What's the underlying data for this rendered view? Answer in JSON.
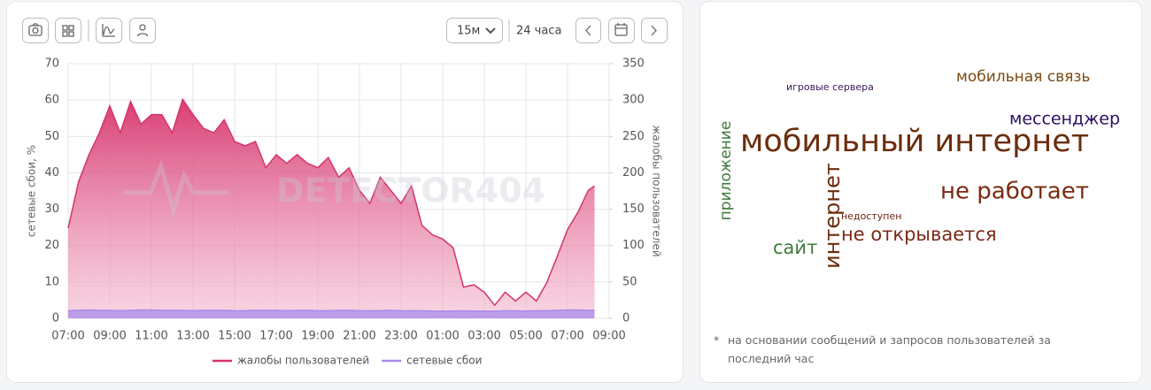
{
  "toolbar": {
    "interval": "15м",
    "period": "24 часа"
  },
  "chart_data": {
    "type": "area",
    "watermark": "DETECTOR404",
    "ylabel": "сетевые сбои, %",
    "y2label": "жалобы пользователей",
    "x": [
      0,
      0.5,
      1,
      1.5,
      2,
      2.5,
      3,
      3.5,
      4,
      4.5,
      5,
      5.5,
      6,
      6.5,
      7,
      7.5,
      8,
      8.5,
      9,
      9.5,
      10,
      10.5,
      11,
      11.5,
      12,
      12.5,
      13,
      13.5,
      14,
      14.5,
      15,
      15.5,
      16,
      16.5,
      17,
      17.5,
      18,
      18.5,
      19,
      19.5,
      20,
      20.5,
      21,
      21.5,
      22,
      22.5,
      23,
      23.5,
      24,
      24.5,
      25,
      25.3
    ],
    "xlim": [
      0,
      26
    ],
    "xticks": [
      {
        "value": 0,
        "label": "07:00"
      },
      {
        "value": 2,
        "label": "09:00"
      },
      {
        "value": 4,
        "label": "11:00"
      },
      {
        "value": 6,
        "label": "13:00"
      },
      {
        "value": 8,
        "label": "15:00"
      },
      {
        "value": 10,
        "label": "17:00"
      },
      {
        "value": 12,
        "label": "19:00"
      },
      {
        "value": 14,
        "label": "21:00"
      },
      {
        "value": 16,
        "label": "23:00"
      },
      {
        "value": 18,
        "label": "01:00"
      },
      {
        "value": 20,
        "label": "03:00"
      },
      {
        "value": 22,
        "label": "05:00"
      },
      {
        "value": 24,
        "label": "07:00"
      },
      {
        "value": 26,
        "label": "09:00"
      }
    ],
    "ylim": [
      0,
      70
    ],
    "yticks": [
      0,
      10,
      20,
      30,
      40,
      50,
      60,
      70
    ],
    "y2lim": [
      0,
      350
    ],
    "y2ticks": [
      0,
      50,
      100,
      150,
      200,
      250,
      300,
      350
    ],
    "grid": true,
    "legend": "bottom",
    "series": [
      {
        "name": "жалобы пользователей",
        "color": "#d6336c",
        "axis": "y2",
        "values": [
          124,
          188,
          225,
          255,
          292,
          255,
          298,
          267,
          280,
          280,
          255,
          301,
          280,
          261,
          255,
          273,
          243,
          237,
          243,
          207,
          225,
          213,
          225,
          213,
          207,
          221,
          194,
          207,
          176,
          158,
          194,
          176,
          158,
          182,
          128,
          115,
          109,
          97,
          43,
          46,
          36,
          18,
          36,
          24,
          36,
          24,
          49,
          85,
          122,
          146,
          176,
          182
        ]
      },
      {
        "name": "сетевые сбои",
        "color": "#a98be8",
        "values": [
          2.1,
          2.2,
          2.3,
          2.2,
          2.2,
          2.1,
          2.2,
          2.3,
          2.3,
          2.2,
          2.2,
          2.2,
          2.1,
          2.2,
          2.2,
          2.2,
          2.1,
          2.1,
          2.2,
          2.2,
          2.2,
          2.1,
          2.2,
          2.2,
          2.1,
          2.1,
          2.2,
          2.2,
          2.1,
          2.1,
          2.1,
          2.2,
          2.1,
          2.1,
          2.1,
          2.0,
          2.0,
          2.0,
          2.1,
          2.0,
          2.0,
          2.0,
          2.1,
          2.1,
          2.0,
          2.1,
          2.1,
          2.2,
          2.3,
          2.3,
          2.2,
          2.2
        ]
      }
    ]
  },
  "word_cloud": {
    "words": [
      "игровые сервера",
      "мобильная связь",
      "мессенджер",
      "мобильный интернет",
      "приложение",
      "интернет",
      "не работает",
      "недоступен",
      "не открывается",
      "сайт"
    ],
    "note_marker": "*",
    "note": "на основании сообщений и запросов пользователей за последний час"
  }
}
